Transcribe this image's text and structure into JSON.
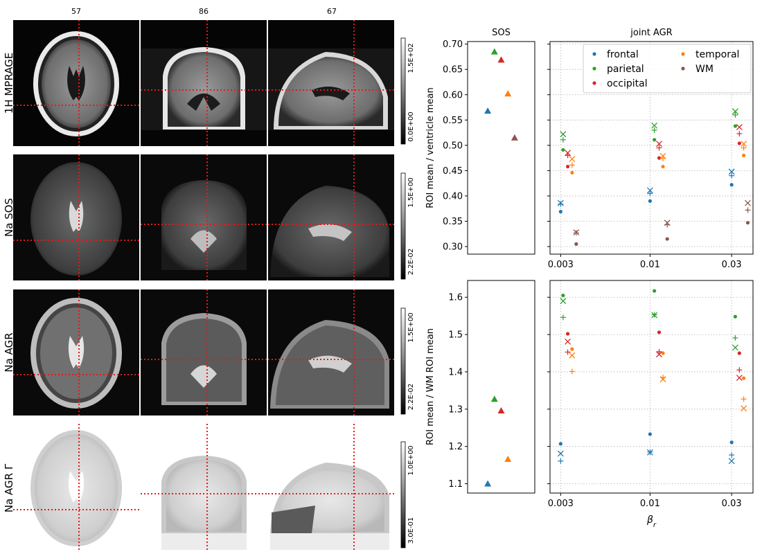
{
  "brain_panel": {
    "slice_numbers": [
      "57",
      "86",
      "67"
    ],
    "row_labels": [
      "1H MPRAGE",
      "Na SOS",
      "Na AGR",
      "Na AGR Γ"
    ],
    "colorbars": [
      {
        "max": "1.5E+02",
        "min": "0.0E+00"
      },
      {
        "max": "1.5E+00",
        "min": "2.2E-02"
      },
      {
        "max": "1.5E+00",
        "min": "2.2E-02"
      },
      {
        "max": "1.0E+00",
        "min": "3.0E-01"
      }
    ],
    "crosshair_color": "#e31a1c"
  },
  "chart_data": [
    {
      "type": "scatter",
      "title": "SOS",
      "ylabel": "ROI mean / ventricle mean",
      "ylim": [
        0.285,
        0.705
      ],
      "yticks": [
        "0.30",
        "0.35",
        "0.40",
        "0.45",
        "0.50",
        "0.55",
        "0.60",
        "0.65",
        "0.70"
      ],
      "marker": "triangle",
      "series": [
        {
          "name": "frontal",
          "color": "#1f77b4",
          "x": [
            0.3
          ],
          "y": [
            0.568
          ]
        },
        {
          "name": "parietal",
          "color": "#2ca02c",
          "x": [
            0.4
          ],
          "y": [
            0.685
          ]
        },
        {
          "name": "occipital",
          "color": "#d62728",
          "x": [
            0.5
          ],
          "y": [
            0.669
          ]
        },
        {
          "name": "temporal",
          "color": "#ff7f0e",
          "x": [
            0.6
          ],
          "y": [
            0.602
          ]
        },
        {
          "name": "WM",
          "color": "#8c564b",
          "x": [
            0.7
          ],
          "y": [
            0.515
          ]
        }
      ]
    },
    {
      "type": "scatter",
      "title": "joint AGR",
      "xscale": "log",
      "xlim": [
        0.0026,
        0.04
      ],
      "xticks": [
        "0.003",
        "0.01",
        "0.03"
      ],
      "ylim": [
        0.285,
        0.705
      ],
      "legend": "top-right",
      "legend_entries": [
        "frontal",
        "parietal",
        "occipital",
        "temporal",
        "WM"
      ],
      "series": [
        {
          "name": "frontal",
          "color": "#1f77b4",
          "dot": [
            [
              0.003,
              0.369
            ],
            [
              0.01,
              0.39
            ],
            [
              0.03,
              0.422
            ]
          ],
          "plus": [
            [
              0.003,
              0.384
            ],
            [
              0.01,
              0.405
            ],
            [
              0.03,
              0.44
            ]
          ],
          "x": [
            [
              0.003,
              0.386
            ],
            [
              0.01,
              0.411
            ],
            [
              0.03,
              0.448
            ]
          ]
        },
        {
          "name": "parietal",
          "color": "#2ca02c",
          "dot": [
            [
              0.0031,
              0.491
            ],
            [
              0.0106,
              0.511
            ],
            [
              0.0315,
              0.538
            ]
          ],
          "plus": [
            [
              0.0031,
              0.511
            ],
            [
              0.0106,
              0.53
            ],
            [
              0.0315,
              0.56
            ]
          ],
          "x": [
            [
              0.0031,
              0.522
            ],
            [
              0.0106,
              0.539
            ],
            [
              0.0315,
              0.567
            ]
          ]
        },
        {
          "name": "occipital",
          "color": "#d62728",
          "dot": [
            [
              0.0033,
              0.458
            ],
            [
              0.0113,
              0.475
            ],
            [
              0.0333,
              0.504
            ]
          ],
          "plus": [
            [
              0.0033,
              0.48
            ],
            [
              0.0113,
              0.495
            ],
            [
              0.0333,
              0.523
            ]
          ],
          "x": [
            [
              0.0033,
              0.485
            ],
            [
              0.0113,
              0.503
            ],
            [
              0.0333,
              0.536
            ]
          ]
        },
        {
          "name": "temporal",
          "color": "#ff7f0e",
          "dot": [
            [
              0.0035,
              0.446
            ],
            [
              0.0119,
              0.458
            ],
            [
              0.0353,
              0.48
            ]
          ],
          "plus": [
            [
              0.0035,
              0.461
            ],
            [
              0.0119,
              0.474
            ],
            [
              0.0353,
              0.495
            ]
          ],
          "x": [
            [
              0.0035,
              0.473
            ],
            [
              0.0119,
              0.479
            ],
            [
              0.0353,
              0.503
            ]
          ]
        },
        {
          "name": "WM",
          "color": "#8c564b",
          "dot": [
            [
              0.0037,
              0.305
            ],
            [
              0.0126,
              0.315
            ],
            [
              0.0373,
              0.347
            ]
          ],
          "plus": [
            [
              0.0037,
              0.327
            ],
            [
              0.0126,
              0.343
            ],
            [
              0.0373,
              0.372
            ]
          ],
          "x": [
            [
              0.0037,
              0.328
            ],
            [
              0.0126,
              0.347
            ],
            [
              0.0373,
              0.386
            ]
          ]
        }
      ]
    },
    {
      "type": "scatter",
      "ylabel": "ROI mean / WM ROI mean",
      "ylim": [
        1.075,
        1.645
      ],
      "yticks": [
        "1.1",
        "1.2",
        "1.3",
        "1.4",
        "1.5",
        "1.6"
      ],
      "marker": "triangle",
      "series": [
        {
          "name": "frontal",
          "color": "#1f77b4",
          "x": [
            0.3
          ],
          "y": [
            1.1
          ]
        },
        {
          "name": "parietal",
          "color": "#2ca02c",
          "x": [
            0.4
          ],
          "y": [
            1.327
          ]
        },
        {
          "name": "occipital",
          "color": "#d62728",
          "x": [
            0.5
          ],
          "y": [
            1.296
          ]
        },
        {
          "name": "temporal",
          "color": "#ff7f0e",
          "x": [
            0.6
          ],
          "y": [
            1.166
          ]
        }
      ]
    },
    {
      "type": "scatter",
      "xscale": "log",
      "xlim": [
        0.0026,
        0.04
      ],
      "xticks": [
        "0.003",
        "0.01",
        "0.03"
      ],
      "xlabel": "βr",
      "ylim": [
        1.075,
        1.645
      ],
      "series": [
        {
          "name": "frontal",
          "color": "#1f77b4",
          "dot": [
            [
              0.003,
              1.207
            ],
            [
              0.01,
              1.233
            ],
            [
              0.03,
              1.211
            ]
          ],
          "plus": [
            [
              0.003,
              1.161
            ],
            [
              0.01,
              1.185
            ],
            [
              0.03,
              1.177
            ]
          ],
          "x": [
            [
              0.003,
              1.181
            ],
            [
              0.01,
              1.184
            ],
            [
              0.03,
              1.161
            ]
          ]
        },
        {
          "name": "parietal",
          "color": "#2ca02c",
          "dot": [
            [
              0.0031,
              1.605
            ],
            [
              0.0106,
              1.617
            ],
            [
              0.0315,
              1.548
            ]
          ],
          "plus": [
            [
              0.0031,
              1.546
            ],
            [
              0.0106,
              1.553
            ],
            [
              0.0315,
              1.491
            ]
          ],
          "x": [
            [
              0.0031,
              1.59
            ],
            [
              0.0106,
              1.552
            ],
            [
              0.0315,
              1.465
            ]
          ]
        },
        {
          "name": "occipital",
          "color": "#d62728",
          "dot": [
            [
              0.0033,
              1.502
            ],
            [
              0.0113,
              1.506
            ],
            [
              0.0333,
              1.45
            ]
          ],
          "plus": [
            [
              0.0033,
              1.453
            ],
            [
              0.0113,
              1.454
            ],
            [
              0.0333,
              1.405
            ]
          ],
          "x": [
            [
              0.0033,
              1.481
            ],
            [
              0.0113,
              1.447
            ],
            [
              0.0333,
              1.384
            ]
          ]
        },
        {
          "name": "temporal",
          "color": "#ff7f0e",
          "dot": [
            [
              0.0035,
              1.461
            ],
            [
              0.0119,
              1.45
            ],
            [
              0.0353,
              1.383
            ]
          ],
          "plus": [
            [
              0.0035,
              1.401
            ],
            [
              0.0119,
              1.385
            ],
            [
              0.0353,
              1.327
            ]
          ],
          "x": [
            [
              0.0035,
              1.444
            ],
            [
              0.0119,
              1.38
            ],
            [
              0.0353,
              1.302
            ]
          ]
        }
      ]
    }
  ]
}
